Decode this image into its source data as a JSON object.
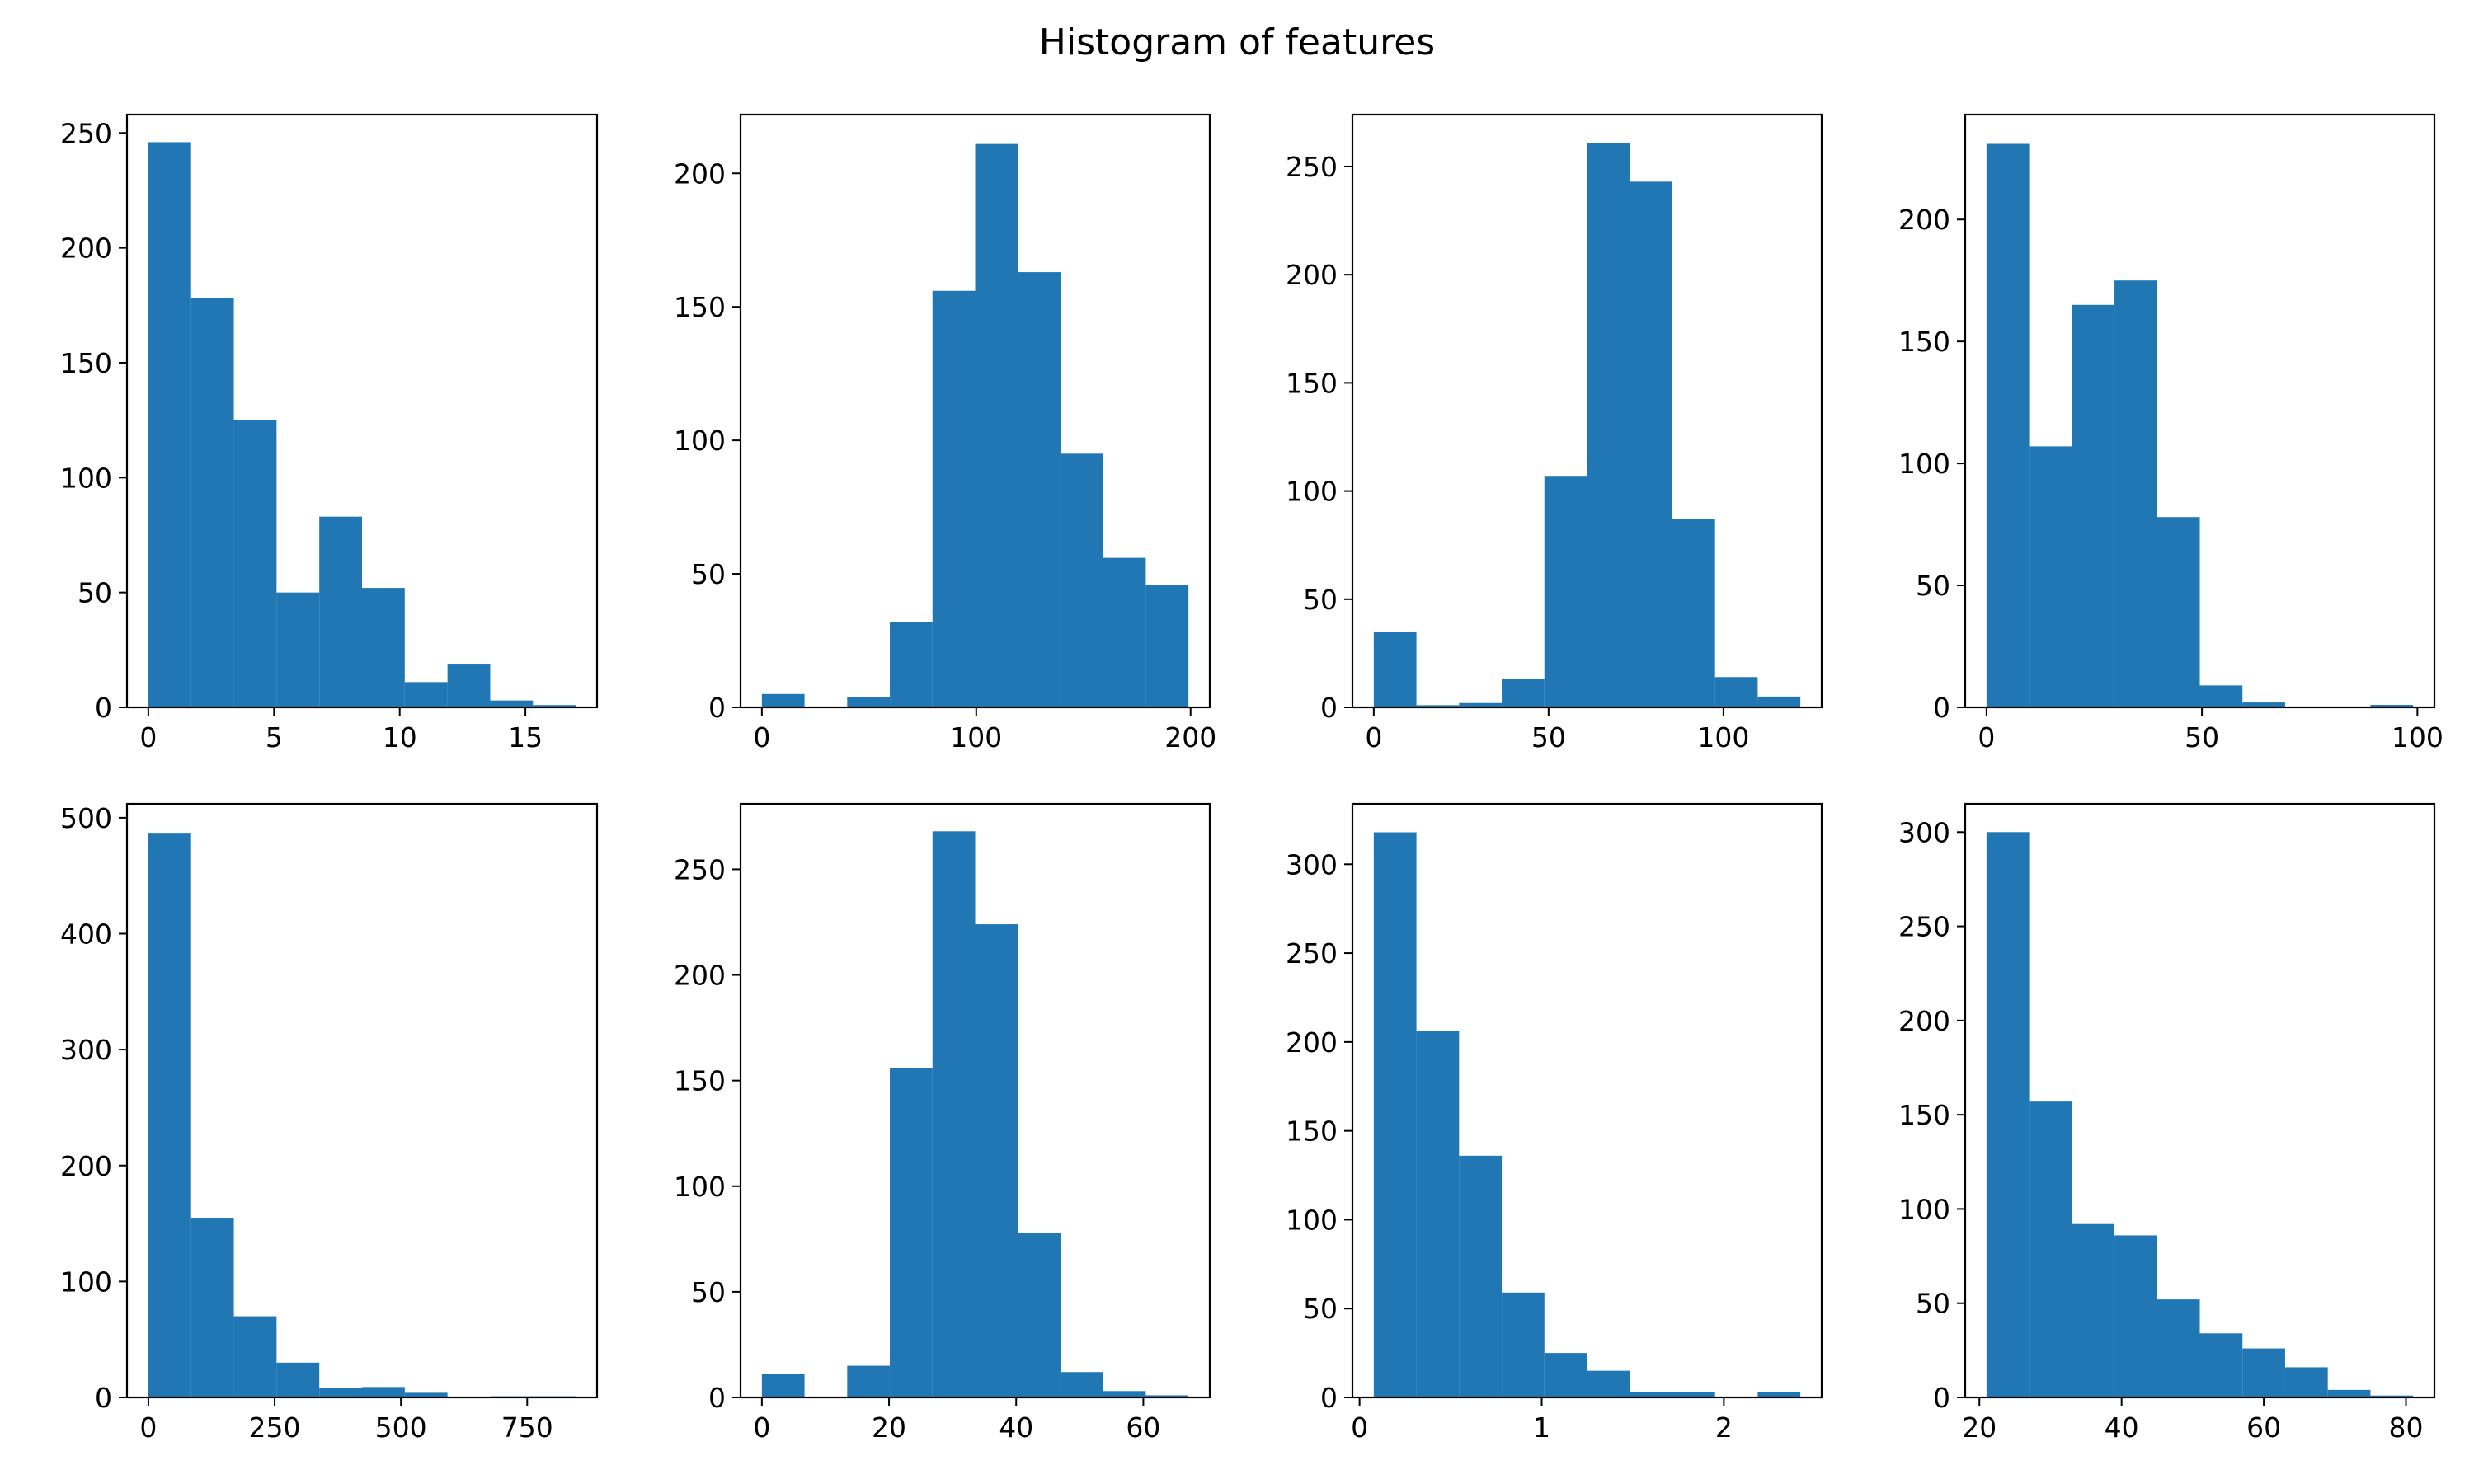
{
  "figure": {
    "title": "Histogram of features",
    "bar_color": "#2077b4",
    "axis_color": "#000000",
    "background": "#ffffff"
  },
  "chart_data": [
    {
      "type": "bar",
      "bin_edges": [
        0,
        1.7,
        3.4,
        5.1,
        6.8,
        8.5,
        10.2,
        11.9,
        13.6,
        15.3,
        17
      ],
      "values": [
        246,
        178,
        125,
        50,
        83,
        52,
        11,
        19,
        3,
        1
      ],
      "xlim": [
        -0.85,
        17.85
      ],
      "ylim": [
        0,
        258
      ],
      "xticks": [
        0,
        5,
        10,
        15
      ],
      "yticks": [
        0,
        50,
        100,
        150,
        200,
        250
      ]
    },
    {
      "type": "bar",
      "bin_edges": [
        0,
        19.9,
        39.8,
        59.7,
        79.6,
        99.5,
        119.4,
        139.3,
        159.2,
        179.1,
        199
      ],
      "values": [
        5,
        0,
        4,
        32,
        156,
        211,
        163,
        95,
        56,
        46
      ],
      "xlim": [
        -9.95,
        208.95
      ],
      "ylim": [
        0,
        222
      ],
      "xticks": [
        0,
        100,
        200
      ],
      "yticks": [
        0,
        50,
        100,
        150,
        200
      ]
    },
    {
      "type": "bar",
      "bin_edges": [
        0,
        12.2,
        24.4,
        36.6,
        48.8,
        61,
        73.2,
        85.4,
        97.6,
        109.8,
        122
      ],
      "values": [
        35,
        1,
        2,
        13,
        107,
        261,
        243,
        87,
        14,
        5
      ],
      "xlim": [
        -6.1,
        128.1
      ],
      "ylim": [
        0,
        274
      ],
      "xticks": [
        0,
        50,
        100
      ],
      "yticks": [
        0,
        50,
        100,
        150,
        200,
        250
      ]
    },
    {
      "type": "bar",
      "bin_edges": [
        0,
        9.9,
        19.8,
        29.7,
        39.6,
        49.5,
        59.4,
        69.3,
        79.2,
        89.1,
        99
      ],
      "values": [
        231,
        107,
        165,
        175,
        78,
        9,
        2,
        0,
        0,
        1
      ],
      "xlim": [
        -4.95,
        103.95
      ],
      "ylim": [
        0,
        243
      ],
      "xticks": [
        0,
        50,
        100
      ],
      "yticks": [
        0,
        50,
        100,
        150,
        200
      ]
    },
    {
      "type": "bar",
      "bin_edges": [
        0,
        84.6,
        169.2,
        253.8,
        338.4,
        423,
        507.6,
        592.2,
        676.8,
        761.4,
        846
      ],
      "values": [
        487,
        155,
        70,
        30,
        8,
        9,
        4,
        0,
        1,
        1
      ],
      "xlim": [
        -42.3,
        888.3
      ],
      "ylim": [
        0,
        512
      ],
      "xticks": [
        0,
        250,
        500,
        750
      ],
      "yticks": [
        0,
        100,
        200,
        300,
        400,
        500
      ]
    },
    {
      "type": "bar",
      "bin_edges": [
        0,
        6.71,
        13.42,
        20.13,
        26.84,
        33.55,
        40.26,
        46.97,
        53.68,
        60.39,
        67.1
      ],
      "values": [
        11,
        0,
        15,
        156,
        268,
        224,
        78,
        12,
        3,
        1
      ],
      "xlim": [
        -3.355,
        70.455
      ],
      "ylim": [
        0,
        281
      ],
      "xticks": [
        0,
        20,
        40,
        60
      ],
      "yticks": [
        0,
        50,
        100,
        150,
        200,
        250
      ]
    },
    {
      "type": "bar",
      "bin_edges": [
        0.078,
        0.3122,
        0.5464,
        0.7806,
        1.0148,
        1.249,
        1.4832,
        1.7174,
        1.9516,
        2.1858,
        2.42
      ],
      "values": [
        318,
        206,
        136,
        59,
        25,
        15,
        3,
        3,
        0,
        3
      ],
      "xlim": [
        -0.0391,
        2.5371
      ],
      "ylim": [
        0,
        334
      ],
      "xticks": [
        0,
        1,
        2
      ],
      "yticks": [
        0,
        50,
        100,
        150,
        200,
        250,
        300
      ]
    },
    {
      "type": "bar",
      "bin_edges": [
        21,
        27,
        33,
        39,
        45,
        51,
        57,
        63,
        69,
        75,
        81
      ],
      "values": [
        300,
        157,
        92,
        86,
        52,
        34,
        26,
        16,
        4,
        1
      ],
      "xlim": [
        18,
        84
      ],
      "ylim": [
        0,
        315
      ],
      "xticks": [
        20,
        40,
        60,
        80
      ],
      "yticks": [
        0,
        50,
        100,
        150,
        200,
        250,
        300
      ]
    }
  ]
}
